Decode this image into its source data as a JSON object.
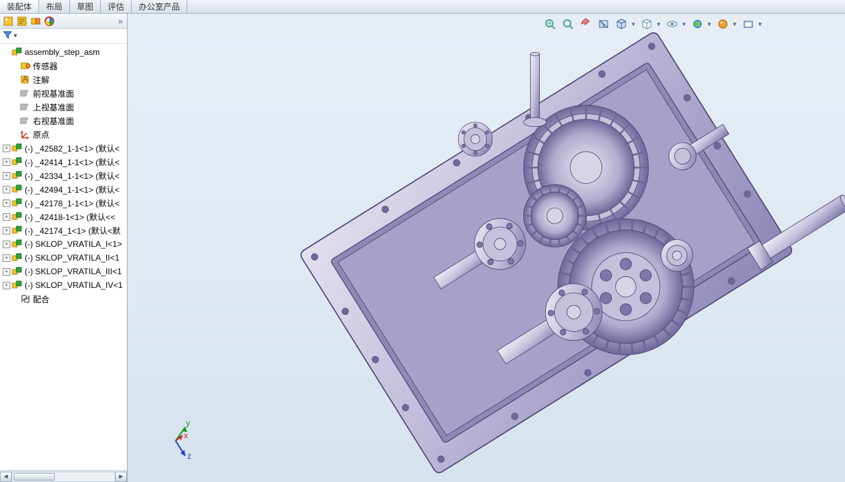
{
  "tabs": {
    "items": [
      {
        "label": "装配体",
        "active": true
      },
      {
        "label": "布局",
        "active": false
      },
      {
        "label": "草图",
        "active": false
      },
      {
        "label": "评估",
        "active": false
      },
      {
        "label": "办公室产品",
        "active": false
      }
    ]
  },
  "panel_toolbar": {
    "expand_glyph": "»"
  },
  "filter": {
    "dropdown_glyph": "▾"
  },
  "tree": {
    "root": {
      "label": "assembly_step_asm"
    },
    "fixed_items": [
      {
        "icon": "sensor",
        "label": "传感器"
      },
      {
        "icon": "annote",
        "label": "注解"
      },
      {
        "icon": "plane",
        "label": "前视基准面"
      },
      {
        "icon": "plane",
        "label": "上视基准面"
      },
      {
        "icon": "plane",
        "label": "右视基准面"
      },
      {
        "icon": "origin",
        "label": "原点"
      }
    ],
    "parts": [
      {
        "label": "(-) _42582_1-1<1> (默认<"
      },
      {
        "label": "(-) _42414_1-1<1> (默认<"
      },
      {
        "label": "(-) _42334_1-1<1> (默认<"
      },
      {
        "label": "(-) _42494_1-1<1> (默认<"
      },
      {
        "label": "(-) _42178_1-1<1> (默认<"
      },
      {
        "label": "(-) _42418-1<1> (默认<<"
      },
      {
        "label": "(-) _42174_1<1> (默认<默"
      },
      {
        "label": "(-) SKLOP_VRATILA_I<1>"
      },
      {
        "label": "(-) SKLOP_VRATILA_II<1"
      },
      {
        "label": "(-) SKLOP_VRATILA_III<1"
      },
      {
        "label": "(-) SKLOP_VRATILA_IV<1"
      }
    ],
    "mates": {
      "label": "配合"
    }
  },
  "scrollbar": {
    "left_glyph": "◄",
    "right_glyph": "►"
  },
  "hud_icons": [
    "zoom-fit",
    "zoom-window",
    "zoom-prev",
    "section",
    "view-orient",
    "display-style",
    "hide-show",
    "edit-appearance",
    "apply-scene",
    "view-settings"
  ],
  "triad": {
    "x_label": "x",
    "y_label": "y",
    "z_label": "z",
    "x_color": "#d21f1f",
    "y_color": "#1a9b1a",
    "z_color": "#1f3fd2"
  },
  "viewport": {
    "bg_top": "#e6edf5",
    "bg_bottom": "#d6e2ee",
    "model_base": "#b9b4d6",
    "model_light": "#e3e0f0",
    "model_dark": "#7d76a8",
    "model_edge": "#4a4470"
  }
}
